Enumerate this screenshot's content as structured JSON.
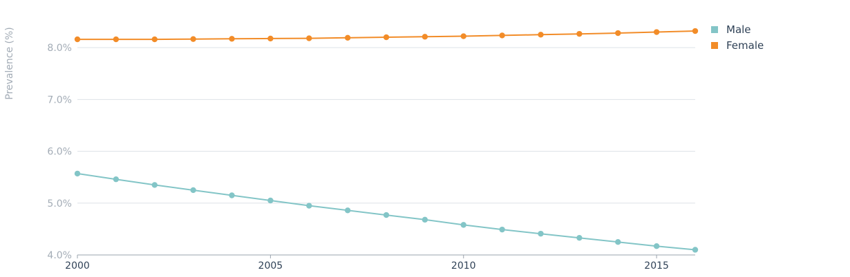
{
  "chart_data": {
    "type": "line",
    "title": "",
    "xlabel": "",
    "ylabel": "Prevalence (%)",
    "x": [
      2000,
      2001,
      2002,
      2003,
      2004,
      2005,
      2006,
      2007,
      2008,
      2009,
      2010,
      2011,
      2012,
      2013,
      2014,
      2015,
      2016
    ],
    "xticks": [
      2000,
      2005,
      2010,
      2015
    ],
    "xtick_labels": [
      "2000",
      "2005",
      "2010",
      "2015"
    ],
    "yticks": [
      4.0,
      5.0,
      6.0,
      7.0,
      8.0
    ],
    "ytick_labels": [
      "4.0%",
      "5.0%",
      "6.0%",
      "7.0%",
      "8.0%"
    ],
    "xlim": [
      2000,
      2016
    ],
    "ylim": [
      4.0,
      8.4
    ],
    "grid": "horizontal",
    "legend_position": "top-right",
    "series": [
      {
        "name": "Male",
        "color": "#83c5c7",
        "values": [
          5.57,
          5.46,
          5.35,
          5.25,
          5.15,
          5.05,
          4.95,
          4.86,
          4.77,
          4.68,
          4.58,
          4.49,
          4.41,
          4.33,
          4.25,
          4.17,
          4.1
        ]
      },
      {
        "name": "Female",
        "color": "#f28c28",
        "values": [
          8.16,
          8.16,
          8.16,
          8.165,
          8.17,
          8.175,
          8.18,
          8.19,
          8.2,
          8.21,
          8.22,
          8.235,
          8.25,
          8.265,
          8.28,
          8.3,
          8.32
        ]
      }
    ]
  }
}
